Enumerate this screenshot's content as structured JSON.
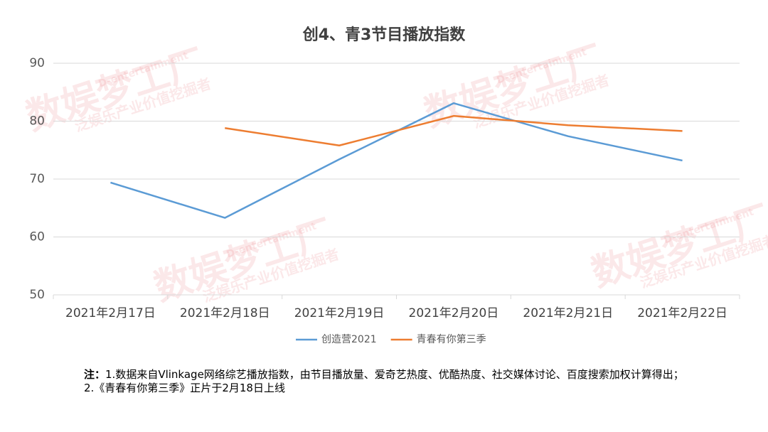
{
  "chart_data": {
    "type": "line",
    "title": "创4、青3节目播放指数",
    "categories": [
      "2021年2月17日",
      "2021年2月18日",
      "2021年2月19日",
      "2021年2月20日",
      "2021年2月21日",
      "2021年2月22日"
    ],
    "series": [
      {
        "name": "创造营2021",
        "color": "#5b9bd5",
        "values": [
          69.4,
          63.3,
          73.4,
          83.1,
          77.4,
          73.2
        ]
      },
      {
        "name": "青春有你第三季",
        "color": "#ed7d31",
        "values": [
          null,
          78.8,
          75.8,
          80.9,
          79.3,
          78.3
        ]
      }
    ],
    "ylim": [
      50,
      90
    ],
    "yticks": [
      50,
      60,
      70,
      80,
      90
    ],
    "grid": true,
    "legend": "bottom",
    "watermark": {
      "brand": "数娱梦工厂",
      "english": "D-entertainment",
      "slogan": "泛娱乐产业价值挖掘者"
    }
  },
  "notes": {
    "label": "注：",
    "lines": [
      "1.数据来自Vlinkage网络综艺播放指数，由节目播放量、爱奇艺热度、优酷热度、社交媒体讨论、百度搜索加权计算得出；",
      "2.《青春有你第三季》正片于2月18日上线"
    ]
  }
}
